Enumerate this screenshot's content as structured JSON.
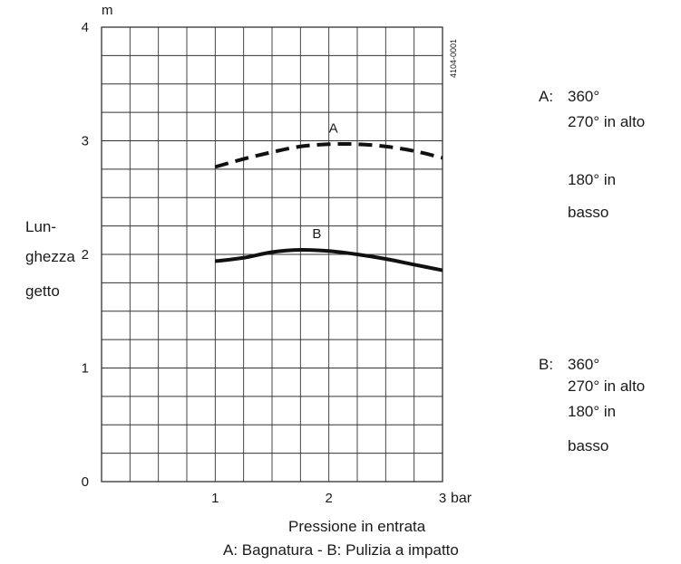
{
  "chart_data": {
    "type": "line",
    "xlabel": "Pressione in entrata",
    "caption": "A: Bagnatura - B: Pulizia a impatto",
    "x_unit": "bar",
    "y_unit": "m",
    "ylabel_lines": [
      "Lun-",
      "ghezza",
      "getto"
    ],
    "xlim": [
      0,
      3
    ],
    "ylim": [
      0,
      4
    ],
    "x_ticks": [
      "1",
      "2",
      "3"
    ],
    "y_ticks": [
      "0",
      "1",
      "2",
      "3",
      "4"
    ],
    "grid": true,
    "figure_code": "4104-0001",
    "series": [
      {
        "name": "A",
        "style": "dashed",
        "x": [
          1.0,
          1.25,
          1.5,
          1.75,
          2.0,
          2.25,
          2.5,
          2.75,
          3.0
        ],
        "y": [
          2.77,
          2.84,
          2.9,
          2.95,
          2.97,
          2.97,
          2.95,
          2.91,
          2.85
        ]
      },
      {
        "name": "B",
        "style": "solid",
        "x": [
          1.0,
          1.25,
          1.5,
          1.75,
          2.0,
          2.25,
          2.5,
          2.75,
          3.0
        ],
        "y": [
          1.94,
          1.97,
          2.02,
          2.04,
          2.03,
          2.0,
          1.96,
          1.91,
          1.86
        ]
      }
    ],
    "legend": [
      {
        "key": "A:",
        "lines": [
          "360°",
          "270° in alto",
          "180°  in",
          "basso"
        ]
      },
      {
        "key": "B:",
        "lines": [
          "360°",
          "270° in alto",
          "180°  in",
          "basso"
        ]
      }
    ]
  }
}
